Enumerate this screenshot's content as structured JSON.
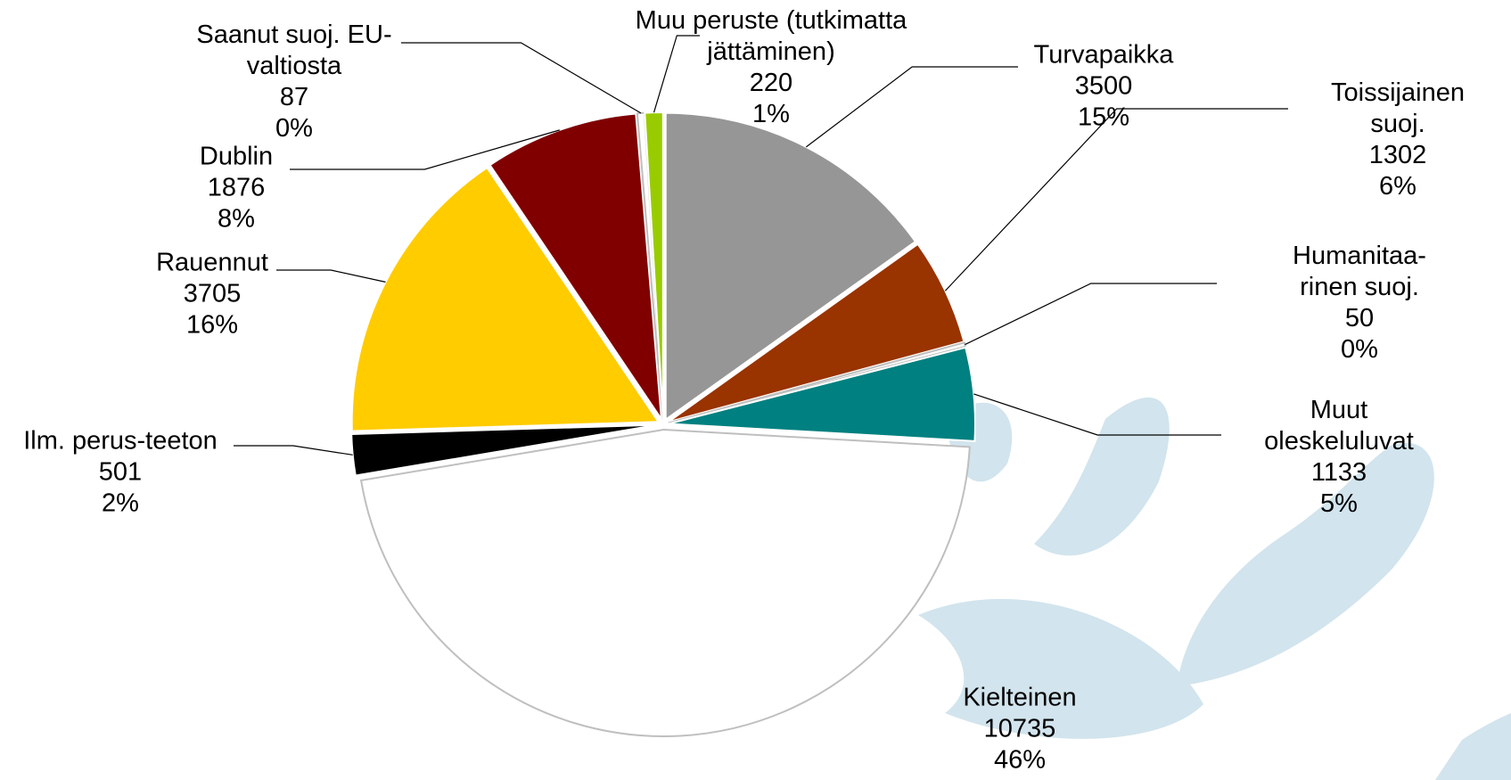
{
  "chart_data": {
    "type": "pie",
    "categories": [
      "Turvapaikka",
      "Toissijainen suoj.",
      "Humanitaa-rinen suoj.",
      "Muut oleskeluluvat",
      "Kielteinen",
      "Ilm. perus-teeton",
      "Rauennut",
      "Dublin",
      "Saanut suoj. EU-valtiosta",
      "Muu peruste (tutkimatta jättäminen)"
    ],
    "values": [
      3500,
      1302,
      50,
      1133,
      10735,
      501,
      3705,
      1876,
      87,
      220
    ],
    "percent_labels": [
      "15%",
      "6%",
      "0%",
      "5%",
      "46%",
      "2%",
      "16%",
      "8%",
      "0%",
      "1%"
    ],
    "colors": [
      "#969696",
      "#993300",
      "#ffffff",
      "#008080",
      "#ffffff",
      "#000000",
      "#ffcc00",
      "#800000",
      "#ffffff",
      "#99cc00"
    ]
  }
}
